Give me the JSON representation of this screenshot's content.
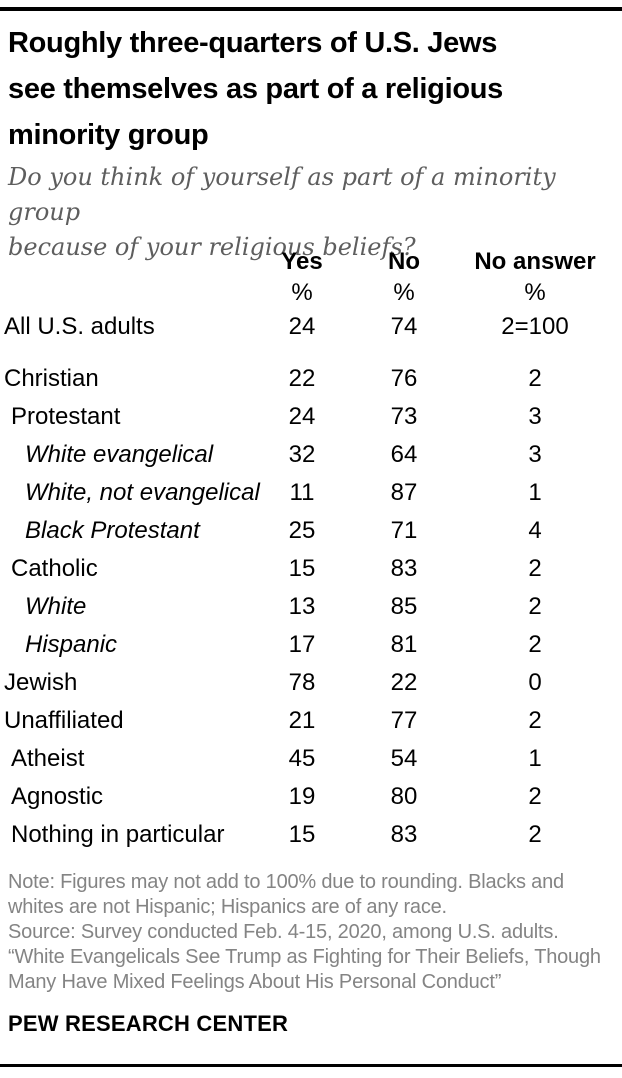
{
  "title": "Roughly three-quarters of U.S. Jews\nsee themselves as part of a religious\nminority group",
  "subtitle": "Do you think of yourself as part of a minority group\nbecause of your religious beliefs?",
  "table": {
    "columns": [
      "Yes",
      "No",
      "No answer"
    ],
    "percent_symbol": "%",
    "rows": [
      {
        "label": "All U.S. adults",
        "level": 0,
        "italic": false,
        "gap_before": false,
        "yes": "24",
        "no": "74",
        "no_answer": "2=100"
      },
      {
        "label": "Christian",
        "level": 0,
        "italic": false,
        "gap_before": true,
        "yes": "22",
        "no": "76",
        "no_answer": "2"
      },
      {
        "label": "Protestant",
        "level": 1,
        "italic": false,
        "gap_before": false,
        "yes": "24",
        "no": "73",
        "no_answer": "3"
      },
      {
        "label": "White evangelical",
        "level": 2,
        "italic": true,
        "gap_before": false,
        "yes": "32",
        "no": "64",
        "no_answer": "3"
      },
      {
        "label": "White, not evangelical",
        "level": 2,
        "italic": true,
        "gap_before": false,
        "yes": "11",
        "no": "87",
        "no_answer": "1"
      },
      {
        "label": "Black Protestant",
        "level": 2,
        "italic": true,
        "gap_before": false,
        "yes": "25",
        "no": "71",
        "no_answer": "4"
      },
      {
        "label": "Catholic",
        "level": 1,
        "italic": false,
        "gap_before": false,
        "yes": "15",
        "no": "83",
        "no_answer": "2"
      },
      {
        "label": "White",
        "level": 2,
        "italic": true,
        "gap_before": false,
        "yes": "13",
        "no": "85",
        "no_answer": "2"
      },
      {
        "label": "Hispanic",
        "level": 2,
        "italic": true,
        "gap_before": false,
        "yes": "17",
        "no": "81",
        "no_answer": "2"
      },
      {
        "label": "Jewish",
        "level": 0,
        "italic": false,
        "gap_before": false,
        "yes": "78",
        "no": "22",
        "no_answer": "0"
      },
      {
        "label": "Unaffiliated",
        "level": 0,
        "italic": false,
        "gap_before": false,
        "yes": "21",
        "no": "77",
        "no_answer": "2"
      },
      {
        "label": "Atheist",
        "level": 1,
        "italic": false,
        "gap_before": false,
        "yes": "45",
        "no": "54",
        "no_answer": "1"
      },
      {
        "label": "Agnostic",
        "level": 1,
        "italic": false,
        "gap_before": false,
        "yes": "19",
        "no": "80",
        "no_answer": "2"
      },
      {
        "label": "Nothing in particular",
        "level": 1,
        "italic": false,
        "gap_before": false,
        "yes": "15",
        "no": "83",
        "no_answer": "2"
      }
    ]
  },
  "footer": {
    "note": "Note: Figures may not add to 100% due to rounding. Blacks and\nwhites are not Hispanic; Hispanics are of any race.",
    "source": "Source: Survey conducted Feb. 4-15, 2020, among U.S. adults.",
    "quote": "“White Evangelicals See Trump as Fighting for Their Beliefs, Though\nMany Have Mixed Feelings About His Personal Conduct”",
    "brand": "PEW RESEARCH CENTER"
  },
  "colors": {
    "text_black": "#000000",
    "subtitle_gray": "#5e5e5e",
    "footer_gray": "#848484",
    "rule_black": "#000000",
    "background": "#ffffff"
  },
  "chart_data": {
    "type": "table",
    "title": "Roughly three-quarters of U.S. Jews see themselves as part of a religious minority group",
    "question": "Do you think of yourself as part of a minority group because of your religious beliefs?",
    "units": "%",
    "columns": [
      "Yes",
      "No",
      "No answer"
    ],
    "categories": [
      "All U.S. adults",
      "Christian",
      "Protestant",
      "White evangelical",
      "White, not evangelical",
      "Black Protestant",
      "Catholic",
      "White",
      "Hispanic",
      "Jewish",
      "Unaffiliated",
      "Atheist",
      "Agnostic",
      "Nothing in particular"
    ],
    "series": [
      {
        "name": "Yes",
        "values": [
          24,
          22,
          24,
          32,
          11,
          25,
          15,
          13,
          17,
          78,
          21,
          45,
          19,
          15
        ]
      },
      {
        "name": "No",
        "values": [
          74,
          76,
          73,
          64,
          87,
          71,
          83,
          85,
          81,
          22,
          77,
          54,
          80,
          83
        ]
      },
      {
        "name": "No answer",
        "values": [
          2,
          2,
          3,
          3,
          1,
          4,
          2,
          2,
          2,
          0,
          2,
          1,
          2,
          2
        ]
      }
    ],
    "annotations": [
      "All U.S. adults row totals shown as 2=100"
    ]
  }
}
